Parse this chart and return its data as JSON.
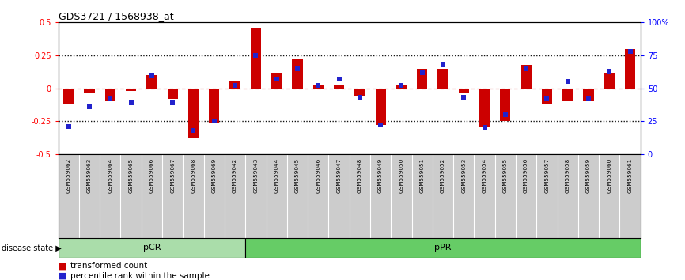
{
  "title": "GDS3721 / 1568938_at",
  "samples": [
    "GSM559062",
    "GSM559063",
    "GSM559064",
    "GSM559065",
    "GSM559066",
    "GSM559067",
    "GSM559068",
    "GSM559069",
    "GSM559042",
    "GSM559043",
    "GSM559044",
    "GSM559045",
    "GSM559046",
    "GSM559047",
    "GSM559048",
    "GSM559049",
    "GSM559050",
    "GSM559051",
    "GSM559052",
    "GSM559053",
    "GSM559054",
    "GSM559055",
    "GSM559056",
    "GSM559057",
    "GSM559058",
    "GSM559059",
    "GSM559060",
    "GSM559061"
  ],
  "transformed_count": [
    -0.12,
    -0.03,
    -0.1,
    -0.02,
    0.1,
    -0.08,
    -0.38,
    -0.27,
    0.05,
    0.46,
    0.12,
    0.22,
    0.02,
    0.02,
    -0.06,
    -0.28,
    0.02,
    0.15,
    0.15,
    -0.04,
    -0.3,
    -0.25,
    0.18,
    -0.12,
    -0.1,
    -0.1,
    0.12,
    0.3
  ],
  "percentile_rank": [
    21,
    36,
    42,
    39,
    60,
    39,
    18,
    25,
    52,
    75,
    57,
    65,
    52,
    57,
    43,
    22,
    52,
    62,
    68,
    43,
    20,
    30,
    65,
    42,
    55,
    42,
    63,
    78
  ],
  "pCR_count": 9,
  "pPR_count": 19,
  "ylim": [
    -0.5,
    0.5
  ],
  "percentile_ylim": [
    0,
    100
  ],
  "bar_color": "#cc0000",
  "square_color": "#2222cc",
  "pCR_facecolor": "#aaddaa",
  "pPR_facecolor": "#66cc66",
  "background_color": "#ffffff",
  "zero_line_color": "#cc0000",
  "dotted_line_color": "#111111",
  "label_bg_color": "#cccccc",
  "label_border_color": "#888888"
}
